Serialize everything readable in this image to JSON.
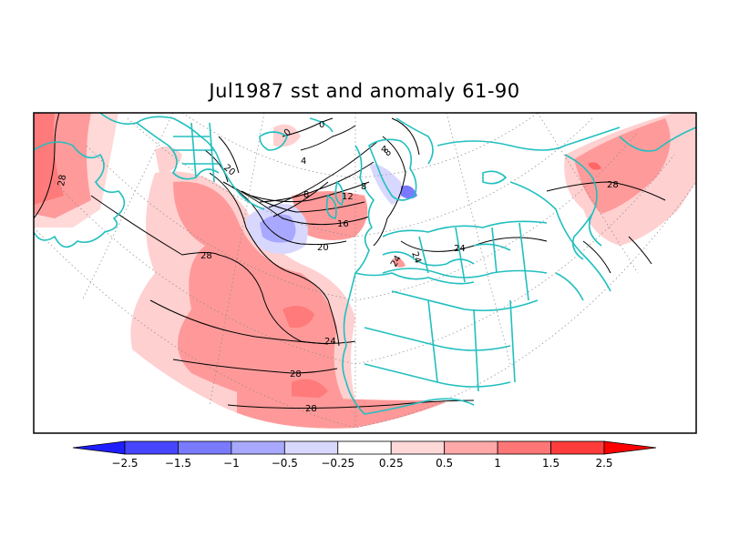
{
  "title": "Jul1987 sst and anomaly 61-90",
  "map": {
    "projection": "polar stereographic, North Atlantic and Europe",
    "contour_variable": "sst",
    "shading_variable": "anomaly",
    "contour_labels": [
      "28",
      "28",
      "28",
      "28",
      "28",
      "24",
      "24",
      "24",
      "24",
      "20",
      "20",
      "16",
      "12",
      "8",
      "8",
      "8",
      "4",
      "4",
      "0",
      "0"
    ],
    "coastline_color": "#22bfbf",
    "contour_color": "#000000"
  },
  "colorbar": {
    "tick_labels": [
      "−2.5",
      "−1.5",
      "−1",
      "−0.5",
      "−0.25",
      "0.25",
      "0.5",
      "1",
      "1.5",
      "2.5"
    ],
    "colors": [
      "#1e1eff",
      "#4646ff",
      "#7a7aff",
      "#a8a8ff",
      "#d8d8ff",
      "#ffffff",
      "#ffd8d8",
      "#ffa8a8",
      "#ff7676",
      "#ff3c3c",
      "#ff0000"
    ],
    "levels": [
      -2.5,
      -1.5,
      -1,
      -0.5,
      -0.25,
      0.25,
      0.5,
      1,
      1.5,
      2.5
    ]
  }
}
